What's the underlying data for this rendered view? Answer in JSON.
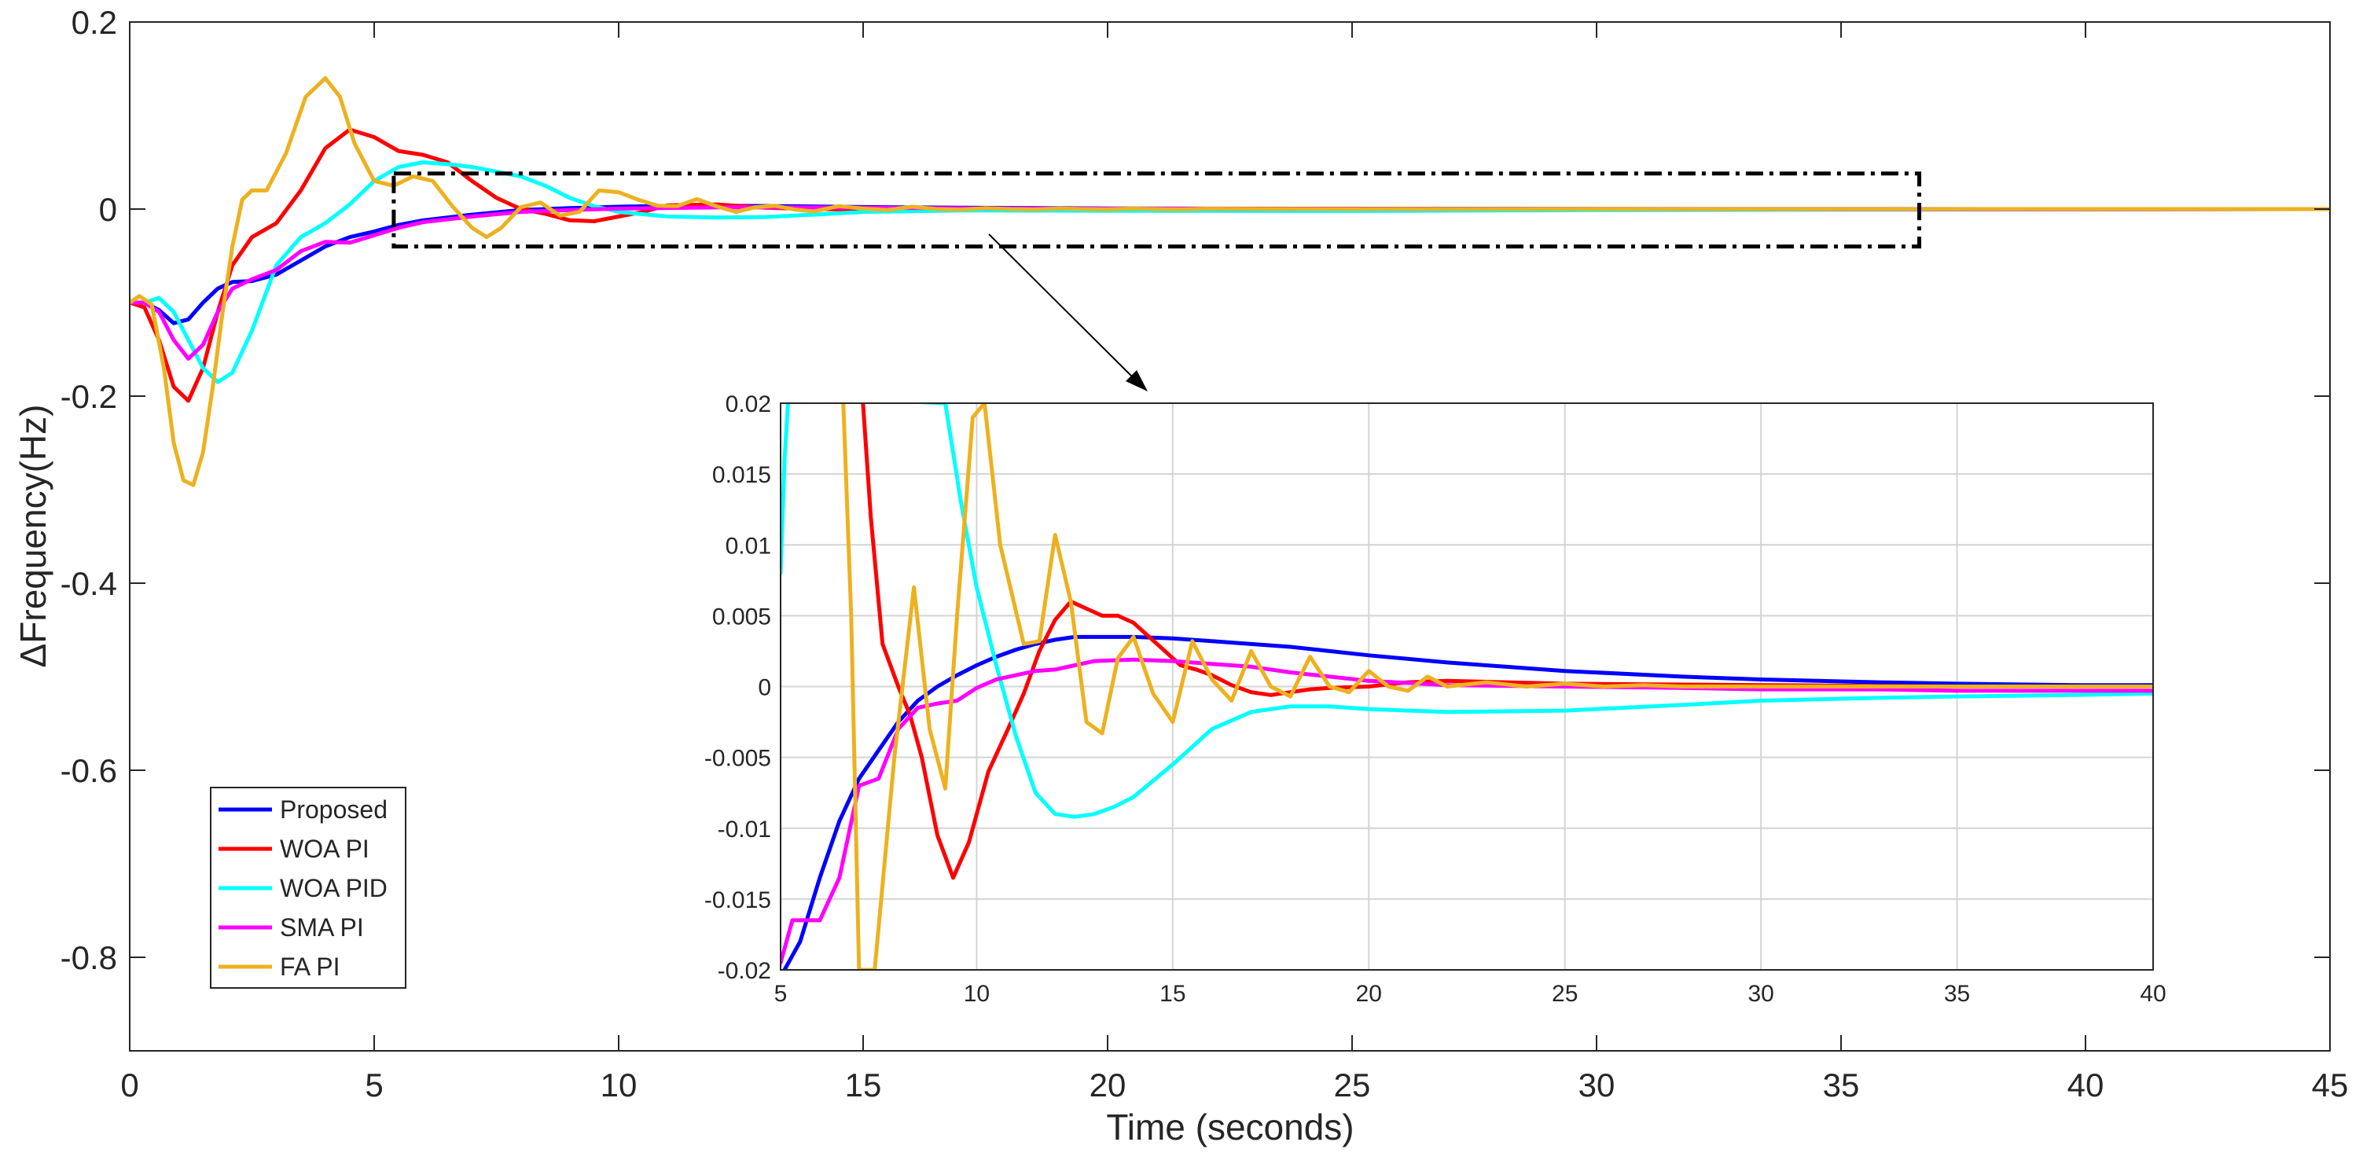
{
  "chart_data": [
    {
      "name": "main",
      "type": "line",
      "title": "",
      "xlabel": "Time (seconds)",
      "ylabel": "ΔFrequency(Hz)",
      "xlim": [
        0,
        45
      ],
      "ylim": [
        -0.9,
        0.2
      ],
      "xticks": [
        0,
        5,
        10,
        15,
        20,
        25,
        30,
        35,
        40,
        45
      ],
      "xtick_labels": [
        "0",
        "5",
        "10",
        "15",
        "20",
        "25",
        "30",
        "35",
        "40",
        "45"
      ],
      "yticks": [
        0.2,
        0,
        -0.2,
        -0.4,
        -0.6,
        -0.8
      ],
      "ytick_labels": [
        "0.2",
        "0",
        "-0.2",
        "-0.4",
        "-0.6",
        "-0.8"
      ],
      "grid": false,
      "legend_position": "bottom-left",
      "zoom_box": {
        "x": [
          5.4,
          36.6
        ],
        "y": [
          -0.04,
          0.038
        ]
      },
      "series": [
        {
          "name": "Proposed",
          "color": "#0000ff",
          "x": [
            0,
            0.3,
            0.6,
            0.9,
            1.2,
            1.5,
            1.8,
            2.1,
            2.5,
            3,
            3.5,
            4,
            4.5,
            5,
            5.5,
            6,
            7,
            8,
            9,
            10,
            11,
            12,
            13,
            14,
            15,
            17,
            20,
            25,
            30,
            35,
            40,
            45
          ],
          "y": [
            -0.1,
            -0.1,
            -0.108,
            -0.122,
            -0.118,
            -0.1,
            -0.085,
            -0.078,
            -0.077,
            -0.07,
            -0.055,
            -0.04,
            -0.03,
            -0.024,
            -0.017,
            -0.012,
            -0.006,
            -0.001,
            0.001,
            0.0025,
            0.0034,
            0.0035,
            0.0033,
            0.0028,
            0.0022,
            0.0014,
            0.0007,
            0.0003,
            0.0001,
            5e-05,
            0,
            0
          ]
        },
        {
          "name": "WOA PI",
          "color": "#ff0000",
          "x": [
            0,
            0.3,
            0.6,
            0.9,
            1.2,
            1.5,
            1.8,
            2.1,
            2.5,
            3,
            3.5,
            4,
            4.5,
            5,
            5.5,
            6,
            6.5,
            7,
            7.5,
            8,
            8.5,
            9,
            9.5,
            10,
            10.5,
            11,
            12,
            13,
            14,
            15,
            17,
            20,
            25,
            30,
            35,
            40,
            45
          ],
          "y": [
            -0.1,
            -0.105,
            -0.14,
            -0.19,
            -0.205,
            -0.17,
            -0.11,
            -0.06,
            -0.03,
            -0.015,
            0.02,
            0.065,
            0.085,
            0.077,
            0.062,
            0.058,
            0.05,
            0.03,
            0.012,
            0,
            -0.005,
            -0.012,
            -0.013,
            -0.008,
            -0.003,
            0.004,
            0.005,
            0.0015,
            0,
            -0.0005,
            0.0005,
            0.0003,
            0.0002,
            0.0001,
            0,
            0,
            0
          ]
        },
        {
          "name": "WOA PID",
          "color": "#00ffff",
          "x": [
            0,
            0.3,
            0.6,
            0.9,
            1.2,
            1.5,
            1.8,
            2.1,
            2.5,
            3,
            3.5,
            4,
            4.5,
            5,
            5.5,
            6,
            6.5,
            7,
            7.5,
            8,
            8.5,
            9,
            9.5,
            10,
            11,
            12,
            13,
            14,
            15,
            17,
            20,
            25,
            30,
            35,
            40,
            45
          ],
          "y": [
            -0.1,
            -0.1,
            -0.095,
            -0.11,
            -0.14,
            -0.17,
            -0.185,
            -0.175,
            -0.13,
            -0.06,
            -0.03,
            -0.015,
            0.005,
            0.03,
            0.045,
            0.05,
            0.048,
            0.045,
            0.04,
            0.035,
            0.025,
            0.012,
            0.003,
            -0.003,
            -0.008,
            -0.009,
            -0.0085,
            -0.006,
            -0.003,
            -0.0015,
            -0.0018,
            -0.002,
            -0.0012,
            -0.0007,
            -0.0004,
            0
          ]
        },
        {
          "name": "SMA PI",
          "color": "#ff00ff",
          "x": [
            0,
            0.3,
            0.6,
            0.9,
            1.2,
            1.5,
            1.8,
            2.1,
            2.5,
            3,
            3.5,
            4,
            4.5,
            5,
            5.5,
            6,
            7,
            8,
            9,
            10,
            11,
            12,
            13,
            14,
            15,
            17,
            20,
            25,
            30,
            35,
            40,
            45
          ],
          "y": [
            -0.1,
            -0.1,
            -0.11,
            -0.14,
            -0.16,
            -0.145,
            -0.11,
            -0.085,
            -0.075,
            -0.065,
            -0.045,
            -0.035,
            -0.036,
            -0.028,
            -0.02,
            -0.014,
            -0.008,
            -0.003,
            -0.001,
            0.0005,
            0.0012,
            0.0018,
            0.0019,
            0.0018,
            0.0015,
            0.0008,
            0.0004,
            0.0001,
            0,
            -0.0002,
            -0.0003,
            0
          ]
        },
        {
          "name": "FA PI",
          "color": "#edb120",
          "x": [
            0,
            0.2,
            0.45,
            0.7,
            0.9,
            1.1,
            1.3,
            1.5,
            1.7,
            1.9,
            2.1,
            2.3,
            2.5,
            2.8,
            3.2,
            3.6,
            4,
            4.3,
            4.6,
            5,
            5.4,
            5.8,
            6.2,
            6.6,
            7,
            7.3,
            7.6,
            8,
            8.4,
            8.8,
            9.2,
            9.6,
            10,
            10.4,
            10.8,
            11.2,
            11.6,
            12,
            12.4,
            12.8,
            13.2,
            13.6,
            14,
            14.5,
            15,
            15.5,
            16,
            16.5,
            17,
            17.5,
            18,
            18.5,
            19,
            19.5,
            20,
            20.5,
            21,
            21.5,
            22,
            23,
            24,
            25,
            26,
            27,
            28,
            30,
            35,
            40,
            45
          ],
          "y": [
            -0.1,
            -0.093,
            -0.102,
            -0.17,
            -0.25,
            -0.29,
            -0.295,
            -0.26,
            -0.19,
            -0.11,
            -0.04,
            0.01,
            0.02,
            0.02,
            0.06,
            0.12,
            0.14,
            0.12,
            0.07,
            0.03,
            0.025,
            0.035,
            0.03,
            0.003,
            -0.02,
            -0.03,
            -0.02,
            0.002,
            0.007,
            -0.007,
            -0.003,
            0.02,
            0.018,
            0.01,
            0.0035,
            0.0032,
            0.0107,
            0.003,
            -0.003,
            0.002,
            0.0035,
            -0.0005,
            -0.0025,
            0.0032,
            0.0005,
            -0.001,
            0.0025,
            0,
            -0.0007,
            0.0011,
            0,
            -0.0004,
            0.0007,
            0,
            -0.0003,
            0.0005,
            0,
            -0.0003,
            0.0004,
            0.0002,
            0.0001,
            0,
            0.0001,
            0,
            0,
            0,
            0,
            0,
            0
          ]
        }
      ]
    },
    {
      "name": "inset",
      "type": "line",
      "title": "",
      "xlabel": "",
      "ylabel": "",
      "xlim": [
        5,
        40
      ],
      "ylim": [
        -0.02,
        0.02
      ],
      "xticks": [
        5,
        10,
        15,
        20,
        25,
        30,
        35,
        40
      ],
      "xtick_labels": [
        "5",
        "10",
        "15",
        "20",
        "25",
        "30",
        "35",
        "40"
      ],
      "yticks": [
        0.02,
        0.015,
        0.01,
        0.005,
        0,
        -0.005,
        -0.01,
        -0.015,
        -0.02
      ],
      "ytick_labels": [
        "0.02",
        "0.015",
        "0.01",
        "0.005",
        "0",
        "-0.005",
        "-0.01",
        "-0.015",
        "-0.02"
      ],
      "grid": true,
      "series": [
        {
          "name": "Proposed",
          "color": "#0000ff",
          "x": [
            5,
            5.5,
            6,
            6.5,
            7,
            7.5,
            8,
            8.5,
            9,
            9.5,
            10,
            10.5,
            11,
            11.5,
            12,
            12.5,
            13,
            14,
            15,
            16,
            17,
            18,
            19,
            20,
            22,
            25,
            28,
            30,
            33,
            35,
            38,
            40
          ],
          "y": [
            -0.0205,
            -0.018,
            -0.0135,
            -0.0095,
            -0.0065,
            -0.0045,
            -0.0025,
            -0.001,
            0,
            0.0008,
            0.0015,
            0.0021,
            0.0026,
            0.003,
            0.0033,
            0.0035,
            0.0035,
            0.0035,
            0.0034,
            0.0032,
            0.003,
            0.0028,
            0.0025,
            0.0022,
            0.0017,
            0.0011,
            0.0007,
            0.0005,
            0.0003,
            0.0002,
            0.0001,
            0.0001
          ]
        },
        {
          "name": "WOA PI",
          "color": "#ff0000",
          "x": [
            7.1,
            7.3,
            7.6,
            8,
            8.3,
            8.6,
            9,
            9.4,
            9.8,
            10.3,
            10.8,
            11.2,
            11.6,
            12,
            12.4,
            12.8,
            13.2,
            13.6,
            14,
            14.4,
            14.8,
            15.2,
            15.6,
            16,
            16.5,
            17,
            17.5,
            18,
            18.5,
            19,
            20,
            21,
            22,
            25,
            30,
            35,
            40
          ],
          "y": [
            0.02,
            0.012,
            0.003,
            0,
            -0.002,
            -0.005,
            -0.0105,
            -0.0135,
            -0.011,
            -0.006,
            -0.003,
            -0.0005,
            0.0025,
            0.0047,
            0.006,
            0.0055,
            0.005,
            0.005,
            0.0045,
            0.0035,
            0.0025,
            0.0015,
            0.0012,
            0.0008,
            0.0001,
            -0.0004,
            -0.0006,
            -0.0004,
            -0.0002,
            -0.0001,
            0,
            0.0003,
            0.0004,
            0.0002,
            0.0001,
            0,
            0
          ]
        },
        {
          "name": "WOA PID",
          "color": "#00ffff",
          "x": [
            5,
            5.1,
            5.2,
            9.2,
            9.6,
            10,
            10.5,
            11,
            11.5,
            12,
            12.5,
            13,
            13.5,
            14,
            15,
            16,
            17,
            18,
            19,
            20,
            22,
            25,
            28,
            30,
            33,
            35,
            38,
            40
          ],
          "y": [
            0.008,
            0.016,
            0.0205,
            0.02,
            0.013,
            0.007,
            0.0015,
            -0.0035,
            -0.0075,
            -0.009,
            -0.0092,
            -0.009,
            -0.0085,
            -0.0078,
            -0.0055,
            -0.003,
            -0.0018,
            -0.0014,
            -0.0014,
            -0.0016,
            -0.0018,
            -0.0017,
            -0.0013,
            -0.001,
            -0.0008,
            -0.0007,
            -0.0006,
            -0.0005
          ]
        },
        {
          "name": "SMA PI",
          "color": "#ff00ff",
          "x": [
            5,
            5.3,
            5.6,
            6,
            6.5,
            7,
            7.5,
            8,
            8.5,
            9,
            9.5,
            10,
            10.5,
            11,
            11.5,
            12,
            12.5,
            13,
            14,
            15,
            16,
            17,
            18,
            19,
            20,
            22,
            25,
            28,
            30,
            33,
            35,
            38,
            40
          ],
          "y": [
            -0.0195,
            -0.0165,
            -0.0165,
            -0.0165,
            -0.0135,
            -0.007,
            -0.0065,
            -0.003,
            -0.0015,
            -0.0012,
            -0.001,
            -0.0001,
            0.0005,
            0.0008,
            0.0011,
            0.0012,
            0.0015,
            0.0018,
            0.0019,
            0.0018,
            0.0016,
            0.0014,
            0.001,
            0.0007,
            0.0004,
            0.0001,
            0,
            -0.0001,
            -0.0002,
            -0.0002,
            -0.0003,
            -0.0003,
            -0.0003
          ]
        },
        {
          "name": "FA PI",
          "color": "#edb120",
          "x": [
            6.6,
            6.8,
            7,
            7.4,
            7.9,
            8.4,
            8.8,
            9.2,
            9.5,
            9.9,
            10.2,
            10.6,
            11.2,
            11.6,
            12,
            12.4,
            12.8,
            13.2,
            13.6,
            14,
            14.5,
            15,
            15.5,
            16,
            16.5,
            17,
            17.5,
            18,
            18.5,
            19,
            19.5,
            20,
            20.5,
            21,
            21.5,
            22,
            23,
            24,
            25,
            26,
            27,
            28,
            30,
            35,
            40
          ],
          "y": [
            0.02,
            0.005,
            -0.02,
            -0.02,
            -0.005,
            0.007,
            -0.003,
            -0.0072,
            0.005,
            0.019,
            0.02,
            0.01,
            0.003,
            0.0032,
            0.0107,
            0.006,
            -0.0025,
            -0.0033,
            0.002,
            0.0035,
            -0.0005,
            -0.0025,
            0.0032,
            0.0005,
            -0.001,
            0.0025,
            0,
            -0.0007,
            0.0021,
            0,
            -0.0004,
            0.0011,
            0,
            -0.0003,
            0.0007,
            0,
            0.0003,
            0,
            0.0002,
            0,
            0.0001,
            0,
            0,
            0,
            0
          ]
        }
      ]
    }
  ]
}
